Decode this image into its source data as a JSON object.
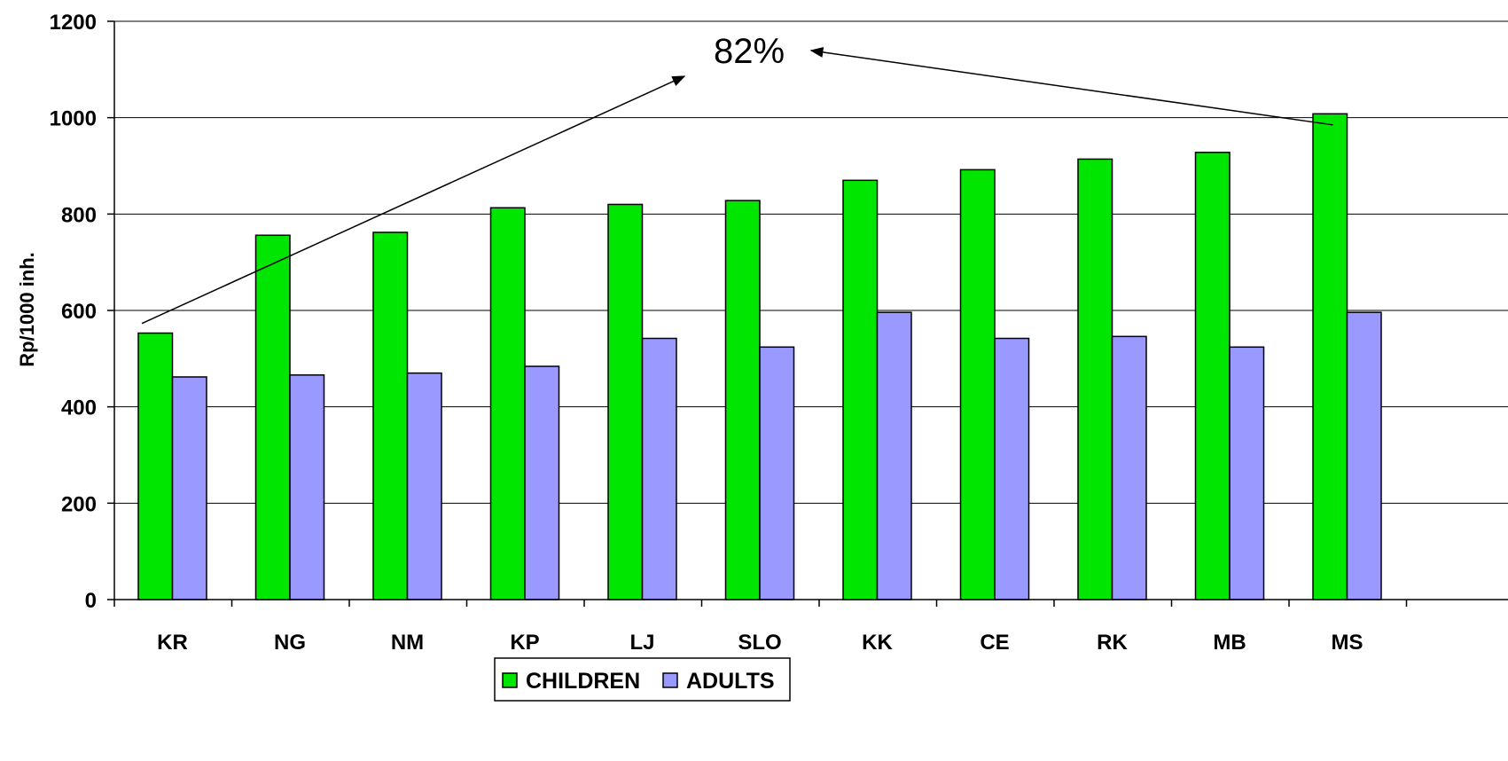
{
  "chart_data": {
    "type": "bar",
    "categories": [
      "KR",
      "NG",
      "NM",
      "KP",
      "LJ",
      "SLO",
      "KK",
      "CE",
      "RK",
      "MB",
      "MS"
    ],
    "series": [
      {
        "name": "CHILDREN",
        "color": "#00e600",
        "values": [
          553,
          756,
          762,
          813,
          820,
          828,
          870,
          892,
          914,
          928,
          1008
        ]
      },
      {
        "name": "ADULTS",
        "color": "#9999ff",
        "values": [
          462,
          466,
          470,
          484,
          542,
          524,
          596,
          542,
          546,
          524,
          596
        ]
      }
    ],
    "title": "",
    "xlabel": "",
    "ylabel": "Rp/1000 inh.",
    "ylim": [
      0,
      1200
    ],
    "yticks": [
      "0",
      "200",
      "400",
      "600",
      "800",
      "1000",
      "1200"
    ],
    "grid": true,
    "legend_position": "bottom",
    "annotation": {
      "text": "82%",
      "arrows": [
        {
          "from": {
            "category": "KR",
            "value": 573
          },
          "to": "label"
        },
        {
          "from": {
            "category": "MS",
            "value": 985
          },
          "to": "label"
        }
      ]
    }
  }
}
